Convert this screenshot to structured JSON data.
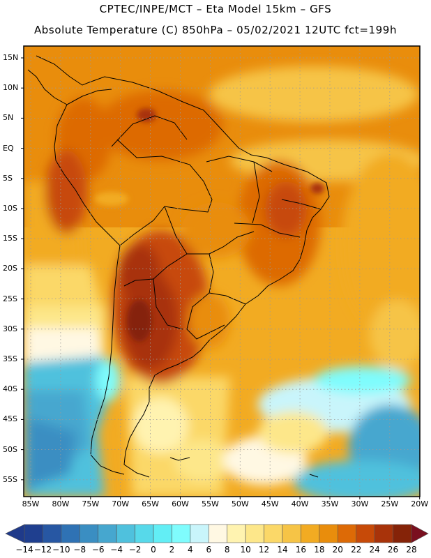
{
  "title_line1": "CPTEC/INPE/MCT –  Eta Model 15km – GFS",
  "title_line2": "Absolute Temperature (C) 850hPa – 05/02/2021 12UTC fct=199h",
  "lat_labels": [
    "15N",
    "10N",
    "5N",
    "EQ",
    "5S",
    "10S",
    "15S",
    "20S",
    "25S",
    "30S",
    "35S",
    "40S",
    "45S",
    "50S",
    "55S"
  ],
  "lon_labels": [
    "85W",
    "80W",
    "75W",
    "70W",
    "65W",
    "60W",
    "55W",
    "50W",
    "45W",
    "40W",
    "35W",
    "30W",
    "25W",
    "20W"
  ],
  "colorbar": {
    "labels": [
      "-14",
      "-12",
      "-10",
      "-8",
      "-6",
      "-4",
      "-2",
      "0",
      "2",
      "4",
      "6",
      "8",
      "10",
      "12",
      "14",
      "16",
      "18",
      "20",
      "22",
      "24",
      "26",
      "28"
    ],
    "colors": [
      "#1f3f8f",
      "#2757a3",
      "#2f72b4",
      "#3a8ec2",
      "#46a7cf",
      "#4fc1dd",
      "#57d9ea",
      "#62eef5",
      "#7ffcfd",
      "#c9f5fb",
      "#fff8e3",
      "#fff3b0",
      "#fde78a",
      "#fbd868",
      "#f6c446",
      "#f2ab22",
      "#e98d0c",
      "#dd6a06",
      "#c74a08",
      "#a8330a",
      "#852308"
    ],
    "min_color": "#1f3a8a",
    "max_color": "#7a0f1f"
  }
}
